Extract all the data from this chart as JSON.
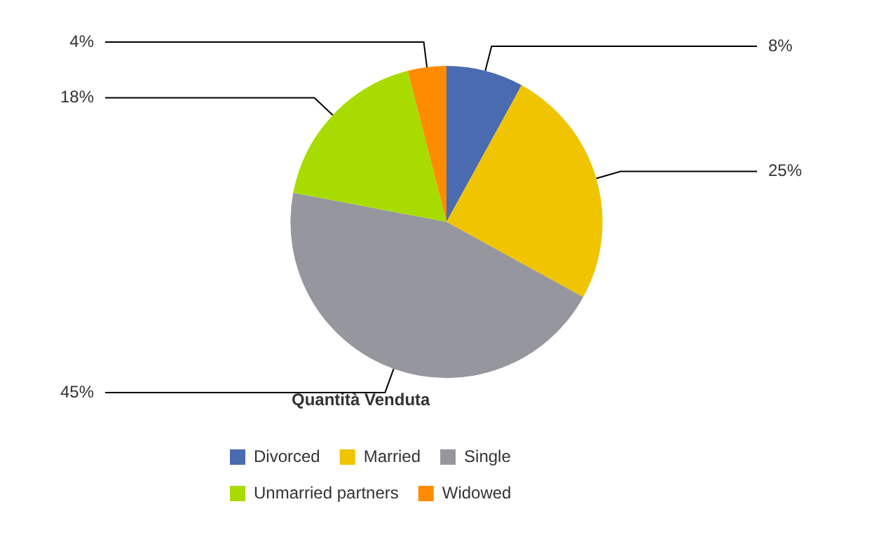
{
  "chart_data": {
    "type": "pie",
    "legend_title": "Quantità Venduta",
    "categories": [
      "Divorced",
      "Married",
      "Single",
      "Unmarried partners",
      "Widowed"
    ],
    "values": [
      8,
      25,
      45,
      18,
      4
    ],
    "value_labels": [
      "8%",
      "25%",
      "45%",
      "18%",
      "4%"
    ],
    "colors": [
      "#4a6bb0",
      "#f0c400",
      "#96969e",
      "#a8dc00",
      "#ff8c00"
    ],
    "legend": "bottom"
  }
}
